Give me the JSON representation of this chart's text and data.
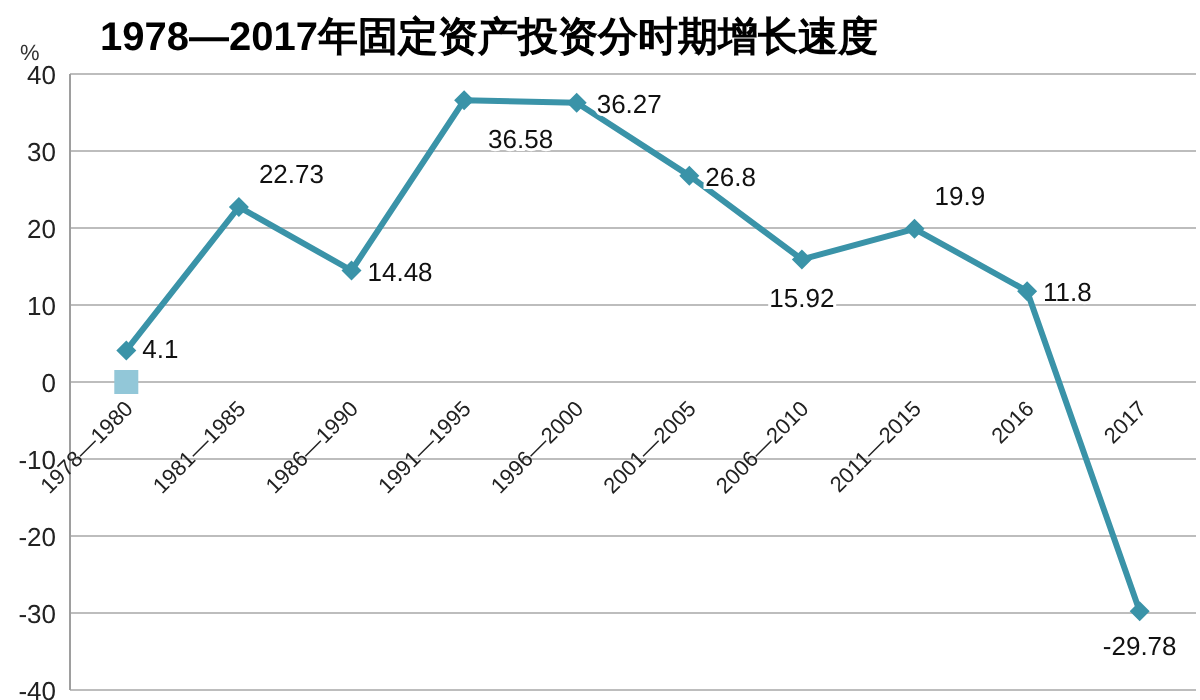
{
  "chart_data": {
    "type": "line",
    "title": "1978—2017年固定资产投资分时期增长速度",
    "ylabel": "%",
    "categories": [
      "1978—1980",
      "1981—1985",
      "1986—1990",
      "1991—1995",
      "1996—2000",
      "2001—2005",
      "2006—2010",
      "2011—2015",
      "2016",
      "2017"
    ],
    "series": [
      {
        "color": "#3a93a8",
        "values": [
          4.1,
          22.73,
          14.48,
          36.58,
          36.27,
          26.8,
          15.92,
          19.9,
          11.8,
          -29.78
        ],
        "value_labels": [
          "4.1",
          "22.73",
          "14.48",
          "36.58",
          "36.27",
          "26.8",
          "15.92",
          "19.9",
          "11.8",
          "-29.78"
        ],
        "marker": "diamond"
      },
      {
        "type": "scatter",
        "color": "#92c7d8",
        "marker": "square",
        "values": [
          0,
          null,
          null,
          null,
          null,
          null,
          null,
          null,
          null,
          null
        ]
      }
    ],
    "ylim": [
      -40,
      40
    ],
    "yticks": [
      -40,
      -30,
      -20,
      -10,
      0,
      10,
      20,
      30,
      40
    ],
    "grid": "y",
    "line_style": "solid"
  }
}
